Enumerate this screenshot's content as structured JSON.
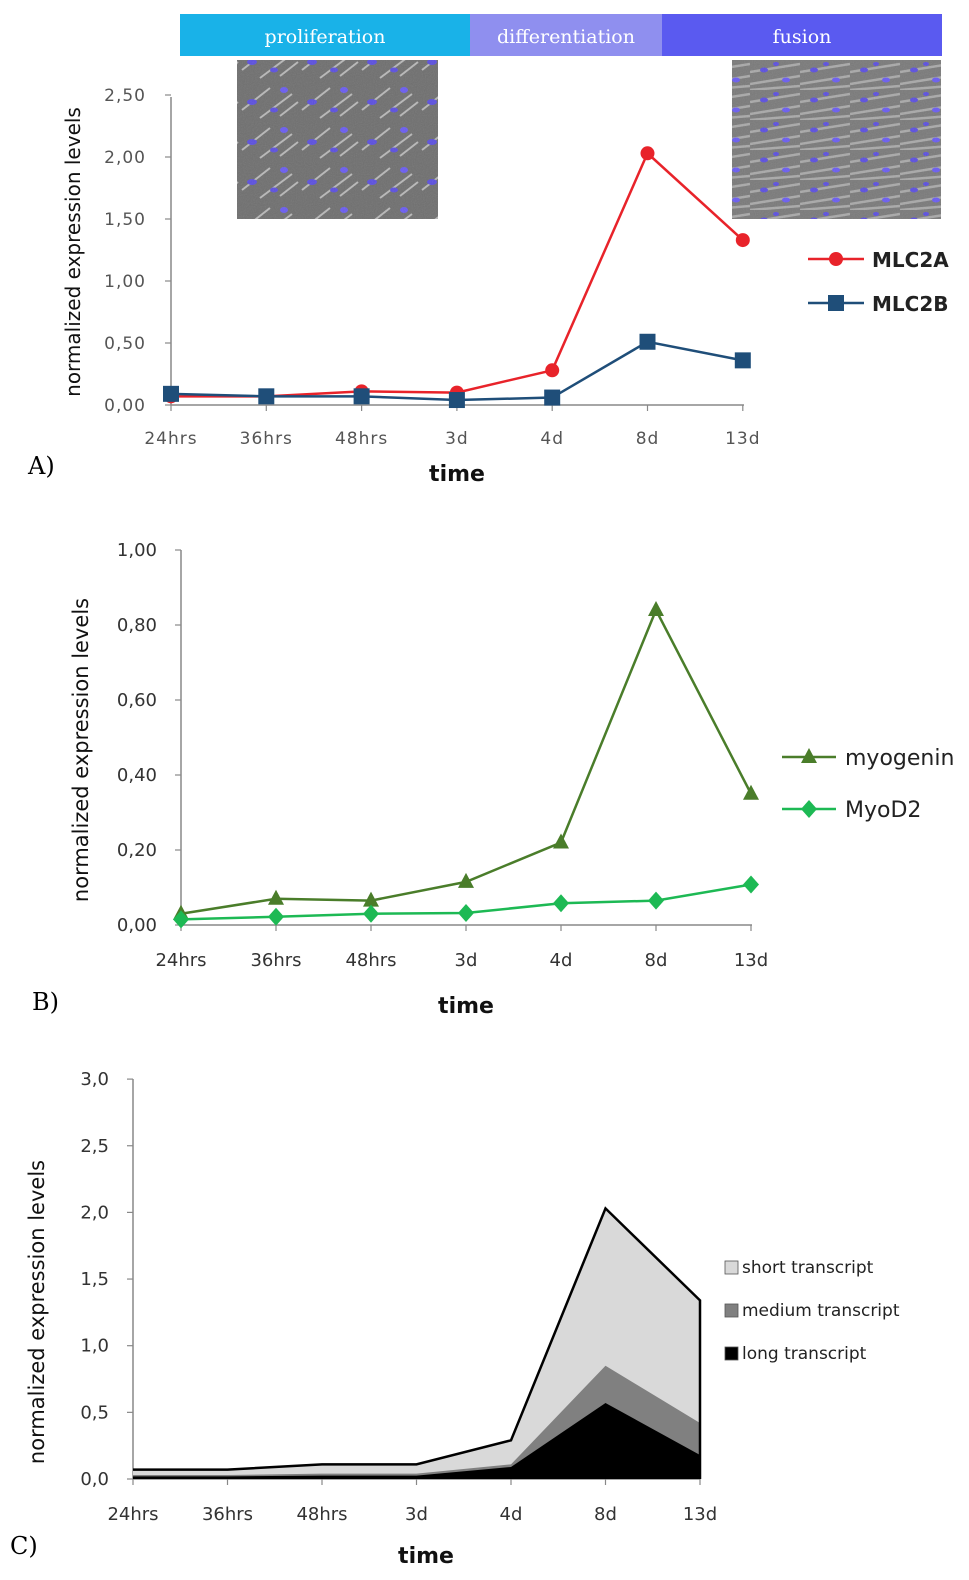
{
  "colors": {
    "MLC2A": "#e8232a",
    "MLC2B": "#1f4e79",
    "myogenin": "#4a7d2a",
    "MyoD2": "#1db954",
    "short": "#d9d9d9",
    "medium": "#808080",
    "long": "#000000",
    "proliferation": "#19b2e8",
    "differentiation": "#8f8fef",
    "fusion": "#5a5af0"
  },
  "chart_data": [
    {
      "id": "A",
      "panel_label": "A)",
      "type": "line",
      "phases": [
        "proliferation",
        "differentiation",
        "fusion"
      ],
      "images": [
        "proliferation-micrograph",
        "fusion-micrograph"
      ],
      "categories": [
        "24hrs",
        "36hrs",
        "48hrs",
        "3d",
        "4d",
        "8d",
        "13d"
      ],
      "ylabel": "normalized expression levels",
      "xlabel": "time",
      "ylim": [
        0,
        2.5
      ],
      "yticks": [
        "0,00",
        "0,50",
        "1,00",
        "1,50",
        "2,00",
        "2,50"
      ],
      "legend_position": "right",
      "series": [
        {
          "name": "MLC2A",
          "marker": "circle",
          "color": "#e8232a",
          "values": [
            0.07,
            0.07,
            0.11,
            0.1,
            0.28,
            2.03,
            1.33
          ]
        },
        {
          "name": "MLC2B",
          "marker": "square",
          "color": "#1f4e79",
          "values": [
            0.09,
            0.07,
            0.07,
            0.04,
            0.06,
            0.51,
            0.36
          ]
        }
      ]
    },
    {
      "id": "B",
      "panel_label": "B)",
      "type": "line",
      "categories": [
        "24hrs",
        "36hrs",
        "48hrs",
        "3d",
        "4d",
        "8d",
        "13d"
      ],
      "ylabel": "normalized expression levels",
      "xlabel": "time",
      "ylim": [
        0,
        1.0
      ],
      "yticks": [
        "0,00",
        "0,20",
        "0,40",
        "0,60",
        "0,80",
        "1,00"
      ],
      "legend_position": "right",
      "series": [
        {
          "name": "myogenin",
          "marker": "triangle",
          "color": "#4a7d2a",
          "values": [
            0.03,
            0.07,
            0.065,
            0.115,
            0.22,
            0.84,
            0.35
          ]
        },
        {
          "name": "MyoD2",
          "marker": "diamond",
          "color": "#1db954",
          "values": [
            0.015,
            0.022,
            0.03,
            0.032,
            0.058,
            0.065,
            0.108
          ]
        }
      ]
    },
    {
      "id": "C",
      "panel_label": "C)",
      "type": "area",
      "stacked": true,
      "categories": [
        "24hrs",
        "36hrs",
        "48hrs",
        "3d",
        "4d",
        "8d",
        "13d"
      ],
      "ylabel": "normalized expression levels",
      "xlabel": "time",
      "ylim": [
        0,
        3.0
      ],
      "yticks": [
        "0,0",
        "0,5",
        "1,0",
        "1,5",
        "2,0",
        "2,5",
        "3,0"
      ],
      "legend_position": "right",
      "series": [
        {
          "name": "long transcript",
          "color": "#000000",
          "values": [
            0.02,
            0.02,
            0.025,
            0.025,
            0.09,
            0.57,
            0.18
          ]
        },
        {
          "name": "medium transcript",
          "color": "#808080",
          "values": [
            0.01,
            0.01,
            0.015,
            0.015,
            0.02,
            0.28,
            0.24
          ]
        },
        {
          "name": "short transcript",
          "color": "#d9d9d9",
          "values": [
            0.04,
            0.04,
            0.07,
            0.07,
            0.18,
            1.18,
            0.92
          ]
        }
      ]
    }
  ]
}
